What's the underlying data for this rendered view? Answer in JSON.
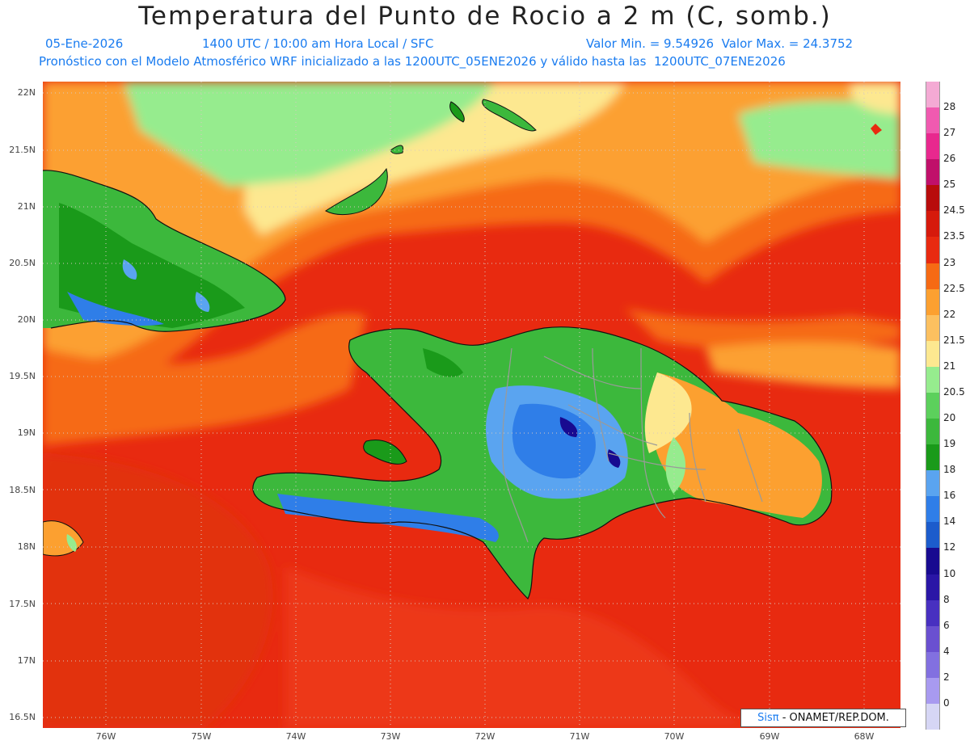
{
  "title": "Temperatura del Punto de Rocio a 2 m (C, somb.)",
  "subtitle": {
    "date": "05-Ene-2026",
    "time": "1400 UTC / 10:00 am Hora Local / SFC",
    "minmax": "Valor Min. = 9.54926  Valor Max. = 24.3752",
    "model": "Pronóstico con el Modelo Atmosférico WRF inicializado a las 1200UTC_05ENE2026 y válido hasta las  1200UTC_07ENE2026"
  },
  "lat_ticks": [
    "22N",
    "21.5N",
    "21N",
    "20.5N",
    "20N",
    "19.5N",
    "19N",
    "18.5N",
    "18N",
    "17.5N",
    "17N",
    "16.5N"
  ],
  "lon_ticks": [
    "76W",
    "75W",
    "74W",
    "73W",
    "72W",
    "71W",
    "70W",
    "69W",
    "68W"
  ],
  "colorbar": {
    "labels": [
      "0",
      "2",
      "4",
      "6",
      "8",
      "10",
      "12",
      "14",
      "16",
      "18",
      "19",
      "20",
      "20.5",
      "21",
      "21.5",
      "22",
      "22.5",
      "23",
      "23.5",
      "24.5",
      "25",
      "26",
      "27",
      "28"
    ],
    "colors": [
      "#d6d6f5",
      "#a89af0",
      "#8270e0",
      "#6a50d0",
      "#4830c0",
      "#2a16a6",
      "#180a90",
      "#1c5ccc",
      "#2f7ee8",
      "#5aa4f0",
      "#1a9a1a",
      "#3cb83c",
      "#5cd05c",
      "#96ec8e",
      "#fde890",
      "#fcc060",
      "#fca030",
      "#f66a14",
      "#e82a10",
      "#d61a0c",
      "#b80c0c",
      "#c0106a",
      "#e8288e",
      "#f05ab0",
      "#f4aad4"
    ]
  },
  "credit": {
    "brand": "Sisπ",
    "text": " - ONAMET/REP.DOM."
  }
}
